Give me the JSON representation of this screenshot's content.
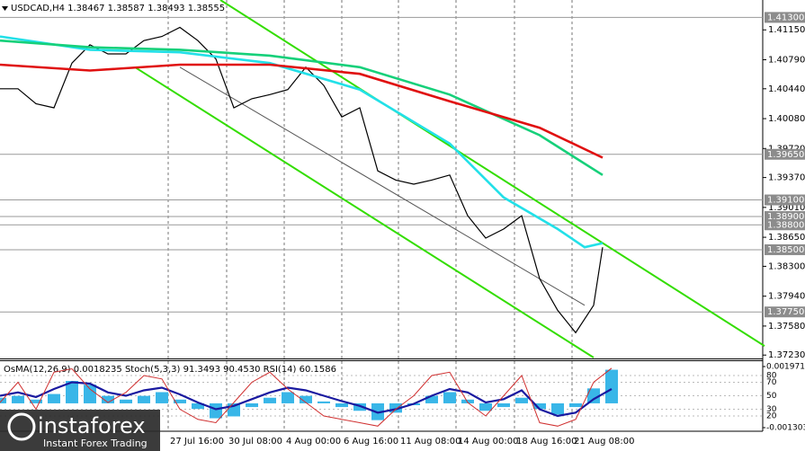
{
  "chart_data": [
    {
      "type": "line",
      "title": "USDCAD,H4 1.38467 1.38587 1.38493 1.38555",
      "xlim": [
        0,
        170
      ],
      "ylim": [
        1.372,
        1.4151
      ],
      "xticks": [
        {
          "value": 37.4,
          "label": "27 Jul 16:00"
        },
        {
          "value": 50.4,
          "label": "30 Jul 08:00"
        },
        {
          "value": 63.2,
          "label": "4 Aug 00:00"
        },
        {
          "value": 76,
          "label": "6 Aug 16:00"
        },
        {
          "value": 88.6,
          "label": "11 Aug 08:00"
        },
        {
          "value": 101.4,
          "label": "14 Aug 00:00"
        },
        {
          "value": 114.4,
          "label": "18 Aug 16:00"
        },
        {
          "value": 127.2,
          "label": "21 Aug 08:00"
        }
      ],
      "yticks": [
        {
          "value": 1.4115,
          "label": "1.41150"
        },
        {
          "value": 1.4079,
          "label": "1.40790"
        },
        {
          "value": 1.4044,
          "label": "1.40440"
        },
        {
          "value": 1.4008,
          "label": "1.40080"
        },
        {
          "value": 1.3972,
          "label": "1.39720"
        },
        {
          "value": 1.3937,
          "label": "1.39370"
        },
        {
          "value": 1.3901,
          "label": "1.39010"
        },
        {
          "value": 1.3865,
          "label": "1.38650"
        },
        {
          "value": 1.383,
          "label": "1.38300"
        },
        {
          "value": 1.3794,
          "label": "1.37940"
        },
        {
          "value": 1.3758,
          "label": "1.37580"
        },
        {
          "value": 1.3723,
          "label": "1.37230"
        }
      ],
      "levels": [
        {
          "value": 1.413,
          "label": "1.41300"
        },
        {
          "value": 1.3965,
          "label": "1.39650"
        },
        {
          "value": 1.391,
          "label": "1.39100"
        },
        {
          "value": 1.389,
          "label": "1.38900"
        },
        {
          "value": 1.388,
          "label": "1.38800"
        },
        {
          "value": 1.385,
          "label": "1.38500"
        },
        {
          "value": 1.3775,
          "label": "1.37750"
        }
      ],
      "series": [
        {
          "color": "#000000",
          "x": [
            0,
            4,
            8,
            12,
            16,
            20,
            24,
            28,
            32,
            36,
            40,
            44,
            48,
            52,
            56,
            60,
            64,
            68,
            72,
            76,
            80,
            84,
            88,
            92,
            96,
            100,
            104,
            108,
            112,
            116,
            120,
            124,
            128,
            132,
            134
          ],
          "values": [
            1.4044,
            1.4044,
            1.4026,
            1.4021,
            1.4075,
            1.4097,
            1.4086,
            1.4086,
            1.4102,
            1.4107,
            1.4118,
            1.4102,
            1.408,
            1.4021,
            1.4032,
            1.4037,
            1.4043,
            1.407,
            1.4048,
            1.401,
            1.4021,
            1.3945,
            1.3934,
            1.3929,
            1.3934,
            1.394,
            1.3891,
            1.3864,
            1.3875,
            1.3891,
            1.3815,
            1.3777,
            1.375,
            1.3783,
            1.3853
          ]
        },
        {
          "color": "#22e0e8",
          "x": [
            0,
            20,
            40,
            60,
            80,
            100,
            112,
            124,
            130,
            134
          ],
          "values": [
            1.4107,
            1.4091,
            1.4088,
            1.4075,
            1.4043,
            1.3978,
            1.3913,
            1.3875,
            1.3853,
            1.3858
          ]
        },
        {
          "color": "#16d07a",
          "x": [
            0,
            20,
            40,
            60,
            80,
            100,
            120,
            134
          ],
          "values": [
            1.4102,
            1.4094,
            1.4091,
            1.4084,
            1.407,
            1.4037,
            1.3988,
            1.394
          ]
        },
        {
          "color": "#e01010",
          "x": [
            0,
            20,
            40,
            60,
            80,
            100,
            120,
            134
          ],
          "values": [
            1.4073,
            1.4066,
            1.4073,
            1.4073,
            1.4062,
            1.4029,
            1.3997,
            1.3961
          ]
        }
      ],
      "trendlines": [
        {
          "color": "#33dd00",
          "x": [
            49,
            170
          ],
          "values": [
            1.4151,
            1.3734
          ]
        },
        {
          "color": "#33dd00",
          "x": [
            30,
            132
          ],
          "values": [
            1.407,
            1.372
          ]
        },
        {
          "color": "#555555",
          "x": [
            40,
            130
          ],
          "values": [
            1.407,
            1.3783
          ]
        }
      ]
    },
    {
      "type": "bar",
      "title": "OsMA(12,26,9) 0.0018235 Stoch(5,3,3) 91.3493 90.4530 RSI(14) 60.1586",
      "xlim": [
        0,
        170
      ],
      "ylim": [
        -0.001303,
        0.0019714
      ],
      "yticks": [
        0.0019714,
        -0.001303
      ],
      "y2lim": [
        0,
        100
      ],
      "y2ticks": [
        80,
        70,
        50,
        30,
        20
      ],
      "x": [
        0,
        4,
        8,
        12,
        16,
        20,
        24,
        28,
        32,
        36,
        40,
        44,
        48,
        52,
        56,
        60,
        64,
        68,
        72,
        76,
        80,
        84,
        88,
        92,
        96,
        100,
        104,
        108,
        112,
        116,
        120,
        124,
        128,
        132,
        136
      ],
      "series": [
        {
          "color": "#39b6e8",
          "values": [
            0.0003,
            0.0004,
            0.0002,
            0.0005,
            0.0012,
            0.001,
            0.0004,
            0.0002,
            0.0004,
            0.0006,
            0.0002,
            -0.0003,
            -0.0008,
            -0.0007,
            -0.0002,
            0.0003,
            0.0006,
            0.0004,
            0.0001,
            -0.0002,
            -0.0004,
            -0.0009,
            -0.0005,
            -0.0001,
            0.0004,
            0.0006,
            0.0002,
            -0.0004,
            -0.0002,
            0.0003,
            -0.0003,
            -0.0006,
            -0.0002,
            0.0008,
            0.0018
          ]
        },
        {
          "color": "#1a1aa0",
          "axis": "y2",
          "values": [
            50,
            55,
            48,
            60,
            70,
            68,
            55,
            50,
            58,
            62,
            52,
            40,
            30,
            35,
            45,
            55,
            62,
            58,
            50,
            42,
            35,
            25,
            30,
            38,
            50,
            60,
            55,
            40,
            45,
            58,
            30,
            20,
            25,
            45,
            60
          ]
        },
        {
          "color": "#d03030",
          "axis": "y2",
          "values": [
            40,
            70,
            30,
            85,
            90,
            60,
            40,
            55,
            80,
            75,
            30,
            15,
            10,
            40,
            70,
            85,
            60,
            40,
            20,
            15,
            10,
            5,
            30,
            50,
            80,
            85,
            40,
            20,
            50,
            80,
            10,
            5,
            15,
            70,
            91
          ]
        }
      ]
    }
  ],
  "watermark": {
    "brand": "instaforex",
    "tagline": "Instant Forex Trading"
  }
}
